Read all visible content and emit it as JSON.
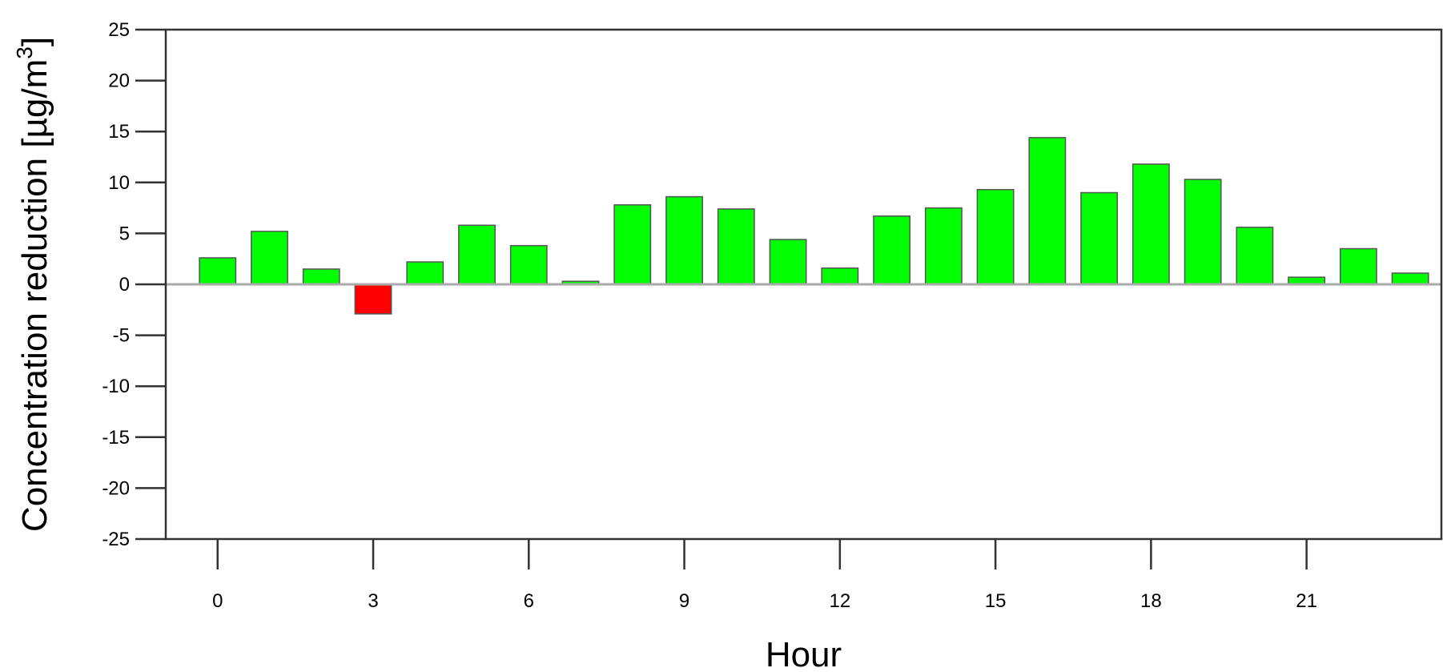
{
  "chart_data": {
    "type": "bar",
    "xlabel": "Hour",
    "ylabel": "Concentration reduction [µg/m",
    "ylabel_superscript": "3",
    "ylabel_close": "]",
    "hours": [
      0,
      1,
      2,
      3,
      4,
      5,
      6,
      7,
      8,
      9,
      10,
      11,
      12,
      13,
      14,
      15,
      16,
      17,
      18,
      19,
      20,
      21,
      22,
      23
    ],
    "values": [
      2.6,
      5.2,
      1.5,
      -2.9,
      2.2,
      5.8,
      3.8,
      0.3,
      7.8,
      8.6,
      7.4,
      4.4,
      1.6,
      6.7,
      7.5,
      9.3,
      14.4,
      9.0,
      11.8,
      10.3,
      5.6,
      0.7,
      3.5,
      1.1
    ],
    "ylim": [
      -25,
      25
    ],
    "xlim": [
      -1,
      23.6
    ],
    "yticks": [
      -25,
      -20,
      -15,
      -10,
      -5,
      0,
      5,
      10,
      15,
      20,
      25
    ],
    "xticks": [
      0,
      3,
      6,
      9,
      12,
      15,
      18,
      21
    ],
    "colors": {
      "positive": "#00ff00",
      "negative": "#ff0000"
    },
    "grid": false,
    "zero_line": true
  }
}
